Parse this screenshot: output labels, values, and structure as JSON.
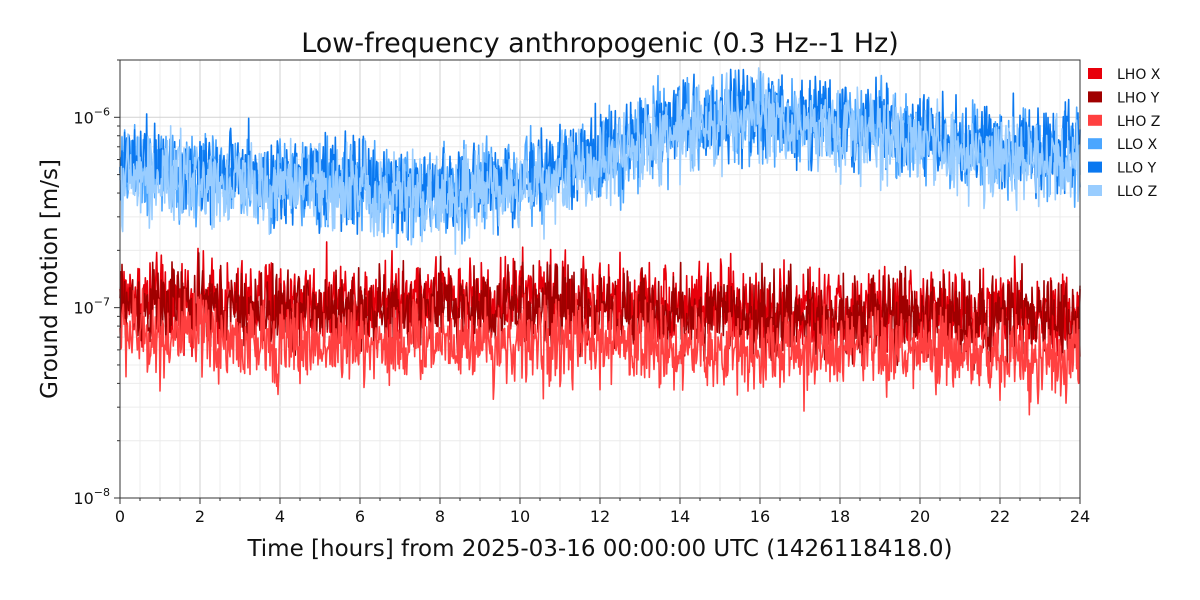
{
  "chart_data": {
    "type": "line",
    "title": "Low-frequency anthropogenic (0.3 Hz--1 Hz)",
    "xlabel": "Time [hours] from 2025-03-16 00:00:00 UTC (1426118418.0)",
    "ylabel": "Ground motion [m/s]",
    "xlim": [
      0,
      24
    ],
    "ylim": [
      1e-08,
      2e-06
    ],
    "yscale": "log",
    "grid": true,
    "legend_position": "outside-right",
    "x_ticks": [
      "0",
      "2",
      "4",
      "6",
      "8",
      "10",
      "12",
      "14",
      "16",
      "18",
      "20",
      "22",
      "24"
    ],
    "y_ticks": [
      {
        "value": 1e-08,
        "base": "10",
        "exp": "−8"
      },
      {
        "value": 1e-07,
        "base": "10",
        "exp": "−7"
      },
      {
        "value": 1e-06,
        "base": "10",
        "exp": "−6"
      }
    ],
    "x": [
      0,
      1,
      2,
      3,
      4,
      5,
      6,
      7,
      8,
      9,
      10,
      11,
      12,
      13,
      14,
      15,
      16,
      17,
      18,
      19,
      20,
      21,
      22,
      23,
      24
    ],
    "series": [
      {
        "name": "LHO X",
        "color": "#e8000b",
        "values": [
          1.15e-07,
          1.1e-07,
          1.1e-07,
          1.05e-07,
          1.1e-07,
          1.05e-07,
          1.1e-07,
          1.15e-07,
          1.15e-07,
          1.1e-07,
          1.15e-07,
          1.15e-07,
          1.1e-07,
          1.05e-07,
          1.05e-07,
          1e-07,
          1e-07,
          9.5e-08,
          9.5e-08,
          9.5e-08,
          9.5e-08,
          9.5e-08,
          9.5e-08,
          9.5e-08,
          9.5e-08
        ]
      },
      {
        "name": "LHO Y",
        "color": "#a00000",
        "values": [
          1.05e-07,
          1e-07,
          1e-07,
          9.5e-08,
          9.5e-08,
          9.5e-08,
          9.5e-08,
          9.5e-08,
          1e-07,
          1e-07,
          1e-07,
          1e-07,
          9.5e-08,
          9.5e-08,
          9e-08,
          9e-08,
          9e-08,
          9e-08,
          8.8e-08,
          8.8e-08,
          8.8e-08,
          8.8e-08,
          8.8e-08,
          8.8e-08,
          8.8e-08
        ]
      },
      {
        "name": "LHO Z",
        "color": "#ff4040",
        "values": [
          7.5e-08,
          7e-08,
          7e-08,
          6.5e-08,
          6.5e-08,
          6.5e-08,
          6.5e-08,
          6.5e-08,
          7e-08,
          6.5e-08,
          6.5e-08,
          6.5e-08,
          6.5e-08,
          6.5e-08,
          6e-08,
          6e-08,
          6e-08,
          5.8e-08,
          5.8e-08,
          5.8e-08,
          5.8e-08,
          5.8e-08,
          5.5e-08,
          5.5e-08,
          5.5e-08
        ]
      },
      {
        "name": "LLO X",
        "color": "#4ba6ff",
        "values": [
          5e-07,
          5.2e-07,
          5e-07,
          4.6e-07,
          4.6e-07,
          4.4e-07,
          4.6e-07,
          4.1e-07,
          4e-07,
          4.4e-07,
          4.6e-07,
          5.2e-07,
          6e-07,
          7.5e-07,
          9e-07,
          1e-06,
          1e-06,
          9.5e-07,
          9e-07,
          8.5e-07,
          8e-07,
          7e-07,
          6.5e-07,
          6.5e-07,
          6.3e-07
        ]
      },
      {
        "name": "LLO Y",
        "color": "#0a78f0",
        "values": [
          5.5e-07,
          5.5e-07,
          5.2e-07,
          5e-07,
          4.8e-07,
          4.7e-07,
          4.8e-07,
          4.2e-07,
          4e-07,
          4.4e-07,
          4.7e-07,
          5.5e-07,
          6.5e-07,
          8e-07,
          9.5e-07,
          1.05e-06,
          1.05e-06,
          1e-06,
          9.3e-07,
          8.8e-07,
          8.2e-07,
          7.5e-07,
          7e-07,
          7e-07,
          6.8e-07
        ]
      },
      {
        "name": "LLO Z",
        "color": "#99cdff",
        "values": [
          4.8e-07,
          4.7e-07,
          4.6e-07,
          4.4e-07,
          4.4e-07,
          4.2e-07,
          4.3e-07,
          3.9e-07,
          3.7e-07,
          4e-07,
          4.2e-07,
          4.8e-07,
          5.6e-07,
          7e-07,
          8.5e-07,
          9.5e-07,
          9.5e-07,
          9e-07,
          8.5e-07,
          8e-07,
          7.5e-07,
          6.5e-07,
          6e-07,
          6e-07,
          5.8e-07
        ]
      }
    ]
  }
}
